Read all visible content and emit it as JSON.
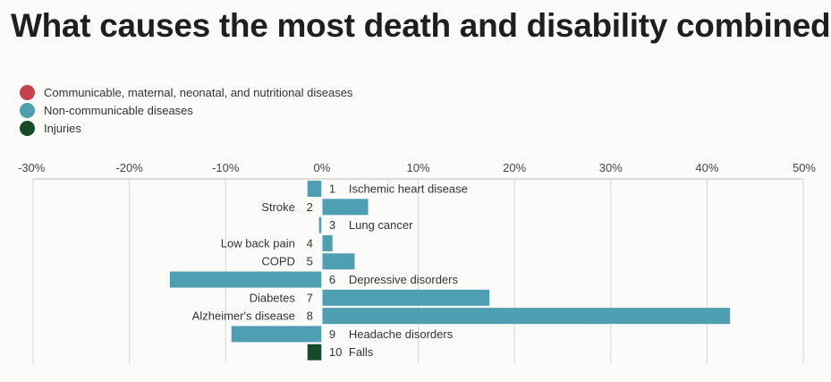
{
  "title": "What causes the most death and disability combined?",
  "legend": [
    {
      "label": "Communicable, maternal, neonatal, and nutritional diseases",
      "color": "#c5424a"
    },
    {
      "label": "Non-communicable diseases",
      "color": "#4e9fb1"
    },
    {
      "label": "Injuries",
      "color": "#154a2a"
    }
  ],
  "chart_data": {
    "type": "bar",
    "orientation": "horizontal",
    "x_ticks": [
      "-30%",
      "-20%",
      "-10%",
      "0%",
      "10%",
      "20%",
      "30%",
      "40%",
      "50%"
    ],
    "xlim": [
      -30,
      50
    ],
    "bars": [
      {
        "rank": "1",
        "name": "Ischemic heart disease",
        "value": -1.5,
        "group": "Non-communicable diseases"
      },
      {
        "rank": "2",
        "name": "Stroke",
        "value": 4.8,
        "group": "Non-communicable diseases"
      },
      {
        "rank": "3",
        "name": "Lung cancer",
        "value": -0.3,
        "group": "Non-communicable diseases"
      },
      {
        "rank": "4",
        "name": "Low back pain",
        "value": 1.1,
        "group": "Non-communicable diseases"
      },
      {
        "rank": "5",
        "name": "COPD",
        "value": 3.4,
        "group": "Non-communicable diseases"
      },
      {
        "rank": "6",
        "name": "Depressive disorders",
        "value": -15.8,
        "group": "Non-communicable diseases"
      },
      {
        "rank": "7",
        "name": "Diabetes",
        "value": 17.4,
        "group": "Non-communicable diseases"
      },
      {
        "rank": "8",
        "name": "Alzheimer's disease",
        "value": 42.4,
        "group": "Non-communicable diseases"
      },
      {
        "rank": "9",
        "name": "Headache disorders",
        "value": -9.4,
        "group": "Non-communicable diseases"
      },
      {
        "rank": "10",
        "name": "Falls",
        "value": -1.5,
        "group": "Injuries"
      }
    ]
  }
}
